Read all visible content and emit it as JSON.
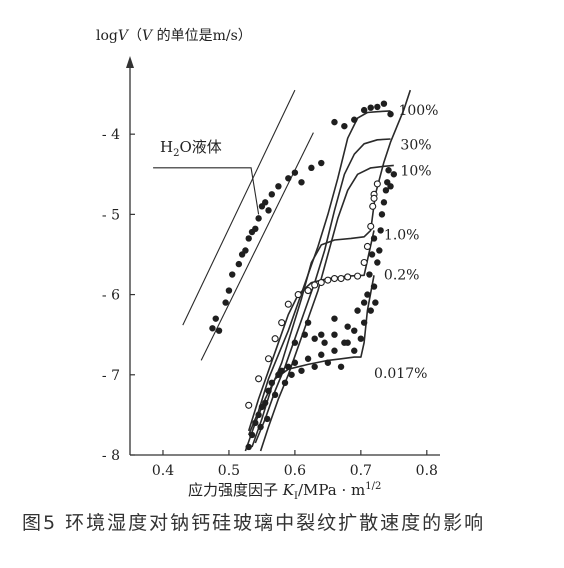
{
  "chart_data": {
    "type": "line",
    "ylabel_parts": {
      "prefix": "log",
      "sym1": "V",
      "mid": "（",
      "sym2": "V",
      "suffix": " 的单位是m/s）"
    },
    "xlabel_parts": {
      "prefix": "应力强度因子 ",
      "sym": "K",
      "sub": "I",
      "suffix": "/MPa · m",
      "sup": "1/2"
    },
    "xlim": [
      0.35,
      0.82
    ],
    "ylim": [
      -8,
      -3.2
    ],
    "xticks": [
      0.4,
      0.5,
      0.6,
      0.7,
      0.8
    ],
    "xtick_labels": [
      "0.4",
      "0.5",
      "0.6",
      "0.7",
      "0.8"
    ],
    "yticks": [
      -8,
      -7,
      -6,
      -5,
      -4
    ],
    "ytick_labels": [
      "- 8",
      "- 7",
      "- 6",
      "- 5",
      "- 4"
    ],
    "annotation": {
      "text_main": "H",
      "text_sub": "2",
      "text_rest": "O液体",
      "target": [
        0.545,
        -5.0
      ],
      "anchor": [
        0.385,
        -4.42
      ]
    },
    "series": [
      {
        "name": "100%",
        "label_at": [
          0.757,
          -3.7
        ],
        "points": [
          [
            0.53,
            -7.75
          ],
          [
            0.545,
            -7.45
          ],
          [
            0.56,
            -7.05
          ],
          [
            0.575,
            -6.75
          ],
          [
            0.59,
            -6.45
          ],
          [
            0.605,
            -6.1
          ],
          [
            0.62,
            -5.75
          ],
          [
            0.635,
            -5.4
          ],
          [
            0.65,
            -5.0
          ],
          [
            0.665,
            -4.55
          ],
          [
            0.68,
            -4.05
          ],
          [
            0.695,
            -3.8
          ],
          [
            0.71,
            -3.73
          ],
          [
            0.725,
            -3.72
          ],
          [
            0.745,
            -3.71
          ]
        ]
      },
      {
        "name": "30%",
        "label_at": [
          0.76,
          -4.13
        ],
        "points": [
          [
            0.54,
            -7.85
          ],
          [
            0.555,
            -7.55
          ],
          [
            0.57,
            -7.2
          ],
          [
            0.585,
            -6.9
          ],
          [
            0.6,
            -6.55
          ],
          [
            0.615,
            -6.2
          ],
          [
            0.63,
            -5.85
          ],
          [
            0.645,
            -5.45
          ],
          [
            0.66,
            -4.95
          ],
          [
            0.675,
            -4.5
          ],
          [
            0.69,
            -4.25
          ],
          [
            0.705,
            -4.12
          ],
          [
            0.725,
            -4.07
          ],
          [
            0.745,
            -4.06
          ]
        ]
      },
      {
        "name": "10%",
        "label_at": [
          0.76,
          -4.45
        ],
        "points": [
          [
            0.548,
            -7.95
          ],
          [
            0.56,
            -7.65
          ],
          [
            0.575,
            -7.3
          ],
          [
            0.59,
            -7.0
          ],
          [
            0.605,
            -6.65
          ],
          [
            0.62,
            -6.3
          ],
          [
            0.635,
            -5.95
          ],
          [
            0.65,
            -5.5
          ],
          [
            0.665,
            -5.05
          ],
          [
            0.68,
            -4.7
          ],
          [
            0.695,
            -4.5
          ],
          [
            0.715,
            -4.42
          ],
          [
            0.735,
            -4.4
          ],
          [
            0.75,
            -4.39
          ]
        ]
      },
      {
        "name": "1.0%",
        "label_at": [
          0.735,
          -5.25
        ],
        "points": [
          [
            0.535,
            -7.9
          ],
          [
            0.55,
            -7.55
          ],
          [
            0.565,
            -7.15
          ],
          [
            0.58,
            -6.85
          ],
          [
            0.595,
            -6.45
          ],
          [
            0.61,
            -6.05
          ],
          [
            0.625,
            -5.6
          ],
          [
            0.64,
            -5.38
          ],
          [
            0.66,
            -5.32
          ],
          [
            0.685,
            -5.3
          ],
          [
            0.705,
            -5.28
          ],
          [
            0.715,
            -5.2
          ],
          [
            0.722,
            -4.75
          ],
          [
            0.735,
            -4.35
          ],
          [
            0.745,
            -4.1
          ],
          [
            0.755,
            -3.9
          ],
          [
            0.765,
            -3.7
          ],
          [
            0.775,
            -3.45
          ]
        ]
      },
      {
        "name": "0.2%",
        "label_at": [
          0.735,
          -5.75
        ],
        "points": [
          [
            0.53,
            -7.7
          ],
          [
            0.545,
            -7.3
          ],
          [
            0.56,
            -6.95
          ],
          [
            0.575,
            -6.6
          ],
          [
            0.59,
            -6.25
          ],
          [
            0.605,
            -6.0
          ],
          [
            0.625,
            -5.85
          ],
          [
            0.65,
            -5.8
          ],
          [
            0.68,
            -5.77
          ],
          [
            0.705,
            -5.76
          ],
          [
            0.72,
            -5.2
          ]
        ]
      },
      {
        "name": "0.017%",
        "label_at": [
          0.72,
          -6.98
        ],
        "points": [
          [
            0.525,
            -7.95
          ],
          [
            0.54,
            -7.6
          ],
          [
            0.555,
            -7.3
          ],
          [
            0.57,
            -7.05
          ],
          [
            0.59,
            -6.93
          ],
          [
            0.62,
            -6.87
          ],
          [
            0.65,
            -6.82
          ],
          [
            0.67,
            -6.8
          ],
          [
            0.69,
            -6.78
          ],
          [
            0.7,
            -6.78
          ],
          [
            0.705,
            -6.6
          ],
          [
            0.71,
            -6.2
          ],
          [
            0.72,
            -5.76
          ]
        ]
      },
      {
        "name": "",
        "label_at": null,
        "style": "outline",
        "points": [
          [
            0.43,
            -6.38
          ],
          [
            0.6,
            -3.45
          ]
        ]
      },
      {
        "name": "",
        "label_at": null,
        "style": "outline",
        "points": [
          [
            0.458,
            -6.82
          ],
          [
            0.628,
            -3.98
          ]
        ]
      }
    ],
    "scatter_filled": [
      [
        0.475,
        -6.42
      ],
      [
        0.48,
        -6.3
      ],
      [
        0.485,
        -6.45
      ],
      [
        0.495,
        -6.1
      ],
      [
        0.5,
        -5.95
      ],
      [
        0.505,
        -5.75
      ],
      [
        0.515,
        -5.62
      ],
      [
        0.52,
        -5.5
      ],
      [
        0.525,
        -5.45
      ],
      [
        0.53,
        -5.3
      ],
      [
        0.535,
        -5.22
      ],
      [
        0.54,
        -5.18
      ],
      [
        0.545,
        -5.05
      ],
      [
        0.55,
        -4.9
      ],
      [
        0.555,
        -4.85
      ],
      [
        0.56,
        -4.95
      ],
      [
        0.565,
        -4.75
      ],
      [
        0.575,
        -4.65
      ],
      [
        0.59,
        -4.55
      ],
      [
        0.6,
        -4.48
      ],
      [
        0.61,
        -4.6
      ],
      [
        0.625,
        -4.42
      ],
      [
        0.64,
        -4.36
      ],
      [
        0.66,
        -3.85
      ],
      [
        0.675,
        -3.9
      ],
      [
        0.69,
        -3.82
      ],
      [
        0.705,
        -3.7
      ],
      [
        0.715,
        -3.67
      ],
      [
        0.725,
        -3.66
      ],
      [
        0.735,
        -3.62
      ],
      [
        0.745,
        -3.75
      ],
      [
        0.53,
        -7.9
      ],
      [
        0.535,
        -7.75
      ],
      [
        0.54,
        -7.6
      ],
      [
        0.545,
        -7.5
      ],
      [
        0.548,
        -7.65
      ],
      [
        0.55,
        -7.4
      ],
      [
        0.555,
        -7.35
      ],
      [
        0.558,
        -7.55
      ],
      [
        0.56,
        -7.2
      ],
      [
        0.565,
        -7.1
      ],
      [
        0.57,
        -7.25
      ],
      [
        0.575,
        -7.0
      ],
      [
        0.58,
        -6.95
      ],
      [
        0.585,
        -7.1
      ],
      [
        0.59,
        -6.9
      ],
      [
        0.595,
        -7.0
      ],
      [
        0.6,
        -6.85
      ],
      [
        0.61,
        -6.95
      ],
      [
        0.62,
        -6.8
      ],
      [
        0.63,
        -6.9
      ],
      [
        0.64,
        -6.75
      ],
      [
        0.65,
        -6.85
      ],
      [
        0.66,
        -6.7
      ],
      [
        0.67,
        -6.9
      ],
      [
        0.68,
        -6.6
      ],
      [
        0.69,
        -6.7
      ],
      [
        0.7,
        -6.55
      ],
      [
        0.6,
        -6.6
      ],
      [
        0.615,
        -6.5
      ],
      [
        0.63,
        -6.55
      ],
      [
        0.645,
        -6.6
      ],
      [
        0.66,
        -6.5
      ],
      [
        0.675,
        -6.6
      ],
      [
        0.69,
        -6.45
      ],
      [
        0.705,
        -6.35
      ],
      [
        0.71,
        -6.0
      ],
      [
        0.715,
        -6.2
      ],
      [
        0.72,
        -5.9
      ],
      [
        0.722,
        -6.1
      ],
      [
        0.725,
        -5.6
      ],
      [
        0.728,
        -5.45
      ],
      [
        0.73,
        -5.2
      ],
      [
        0.732,
        -5.0
      ],
      [
        0.735,
        -4.85
      ],
      [
        0.738,
        -4.7
      ],
      [
        0.74,
        -4.6
      ],
      [
        0.742,
        -4.45
      ],
      [
        0.745,
        -4.65
      ],
      [
        0.75,
        -4.5
      ],
      [
        0.62,
        -6.35
      ],
      [
        0.64,
        -6.5
      ],
      [
        0.66,
        -6.3
      ],
      [
        0.68,
        -6.4
      ],
      [
        0.695,
        -6.2
      ],
      [
        0.705,
        -6.1
      ],
      [
        0.713,
        -5.75
      ],
      [
        0.717,
        -5.5
      ],
      [
        0.72,
        -5.3
      ]
    ],
    "scatter_open": [
      [
        0.53,
        -7.38
      ],
      [
        0.545,
        -7.05
      ],
      [
        0.56,
        -6.8
      ],
      [
        0.57,
        -6.55
      ],
      [
        0.58,
        -6.35
      ],
      [
        0.59,
        -6.12
      ],
      [
        0.605,
        -6.0
      ],
      [
        0.62,
        -5.95
      ],
      [
        0.63,
        -5.88
      ],
      [
        0.64,
        -5.85
      ],
      [
        0.65,
        -5.82
      ],
      [
        0.66,
        -5.8
      ],
      [
        0.67,
        -5.8
      ],
      [
        0.68,
        -5.78
      ],
      [
        0.695,
        -5.77
      ],
      [
        0.705,
        -5.6
      ],
      [
        0.71,
        -5.4
      ],
      [
        0.715,
        -5.15
      ],
      [
        0.718,
        -4.9
      ],
      [
        0.72,
        -4.75
      ],
      [
        0.725,
        -4.62
      ],
      [
        0.72,
        -4.8
      ]
    ]
  },
  "caption": "图5   环境湿度对钠钙硅玻璃中裂纹扩散速度的影响"
}
